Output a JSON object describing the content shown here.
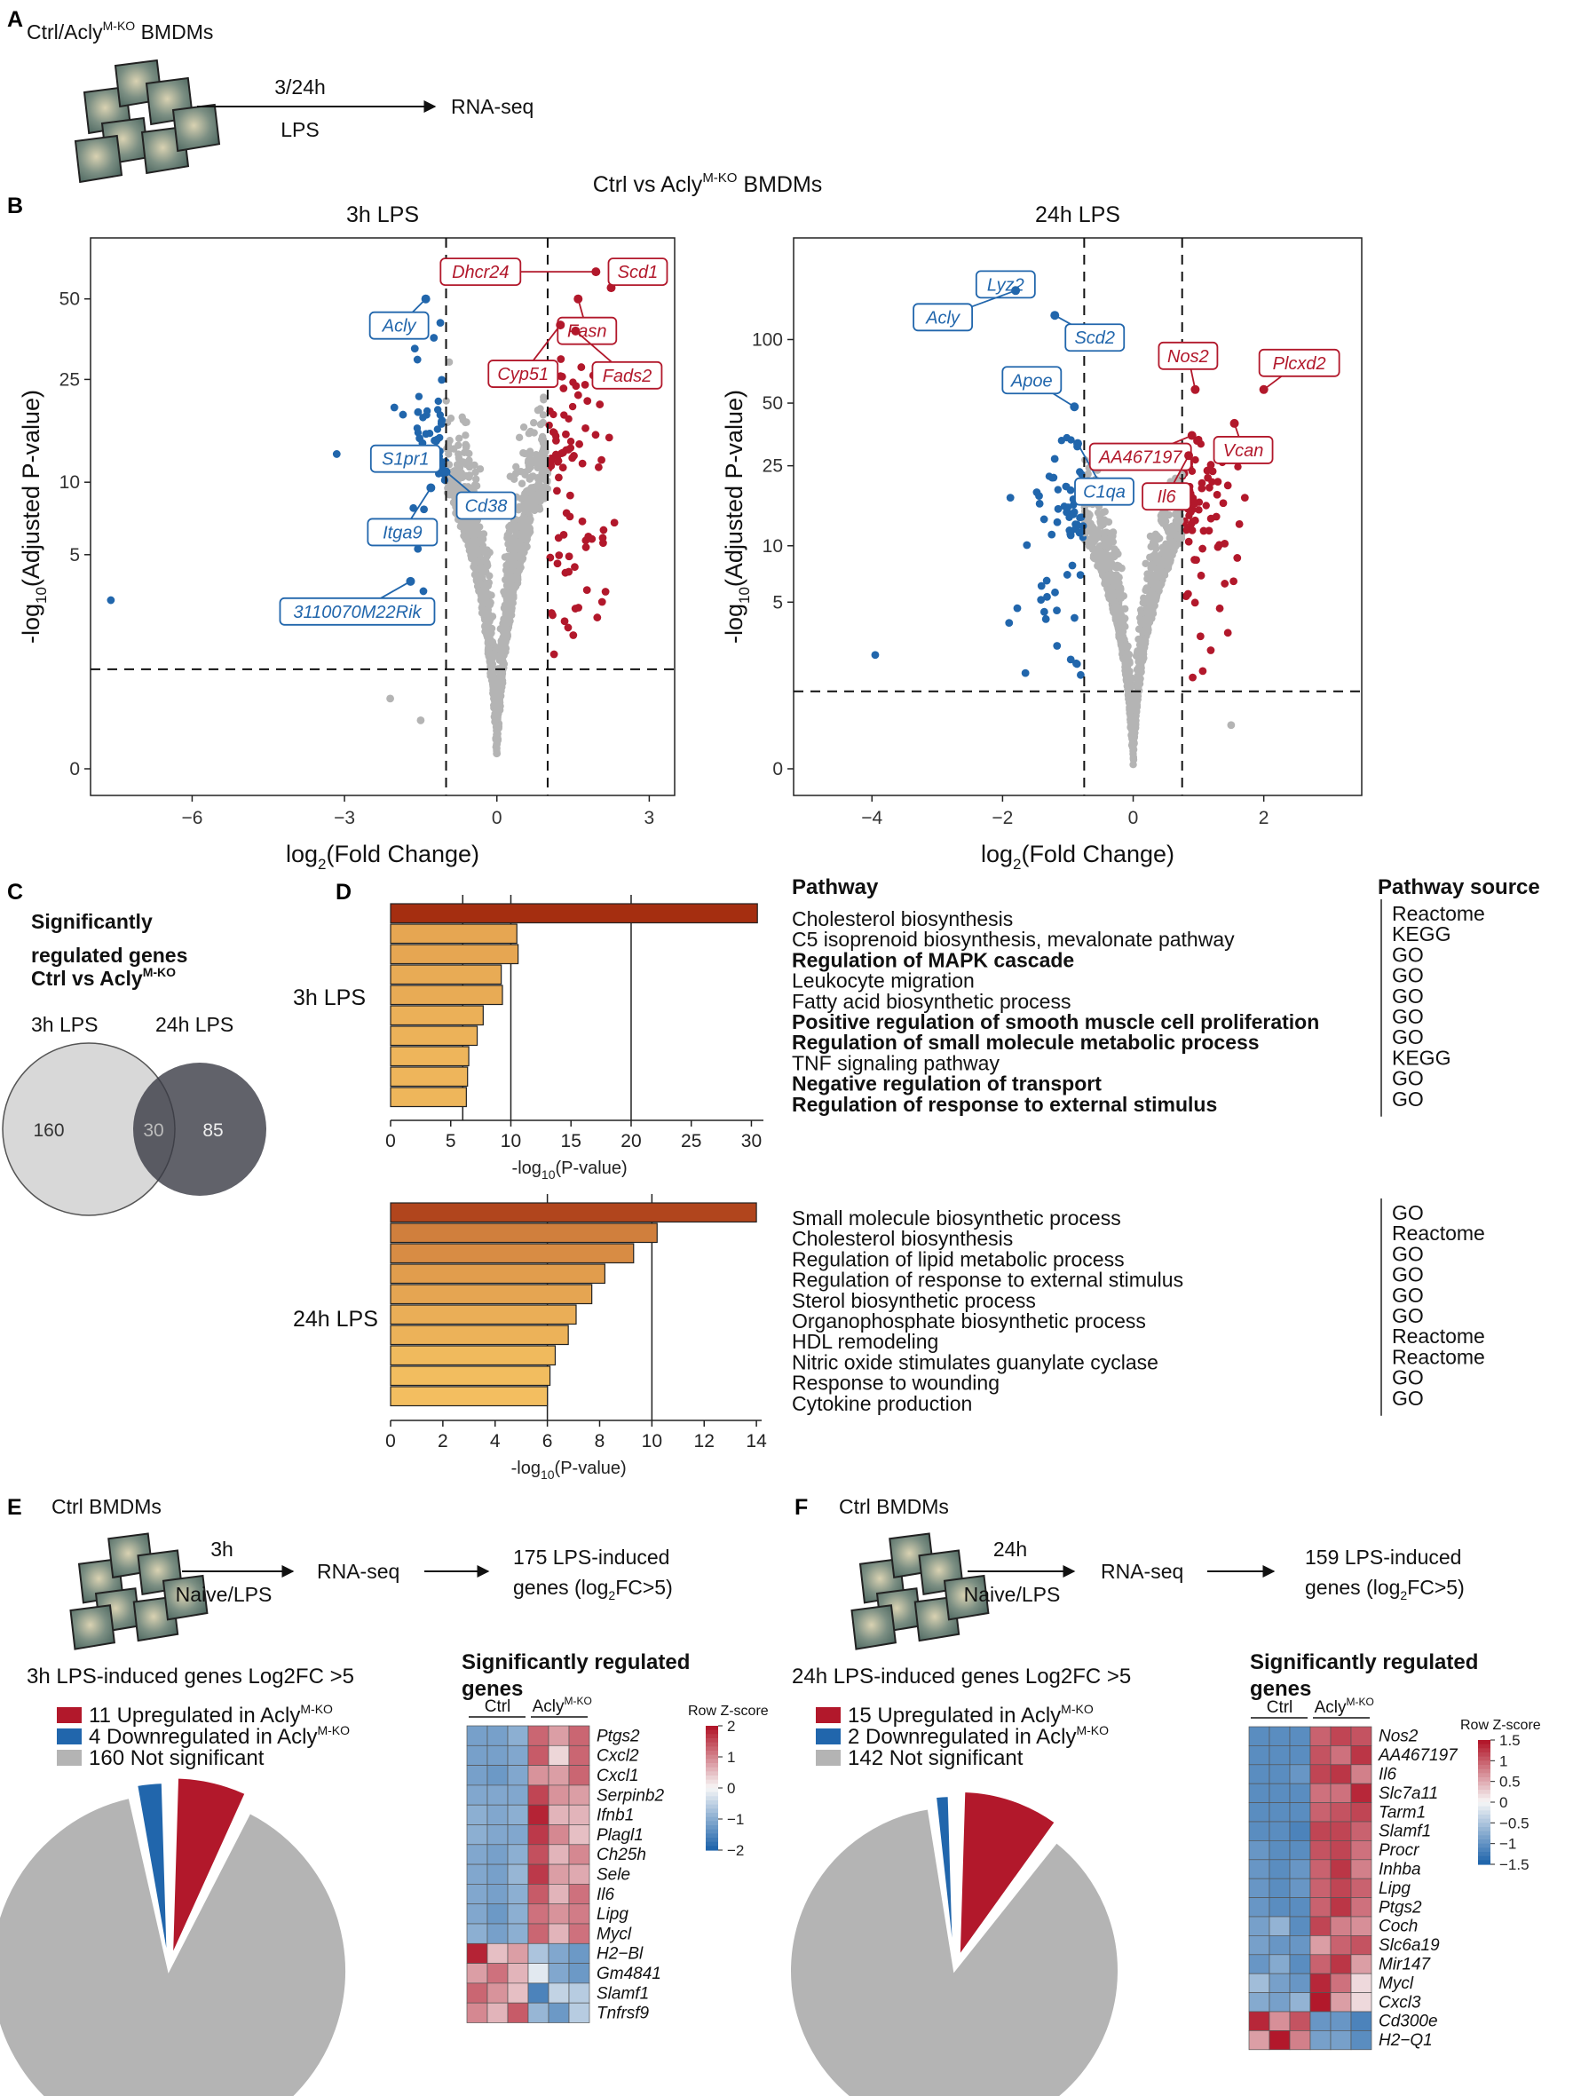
{
  "panel_letters": [
    "A",
    "B",
    "C",
    "D",
    "E",
    "F"
  ],
  "panel_a": {
    "title_prefix": "Ctrl/Acly",
    "title_sup": "M-KO",
    "title_suffix": " BMDMs",
    "arrow_top": "3/24h",
    "arrow_bottom": "LPS",
    "result": "RNA-seq"
  },
  "panel_b": {
    "title_prefix": "Ctrl vs Acly",
    "title_sup": "M-KO",
    "title_suffix": " BMDMs"
  },
  "colors": {
    "up": "#b2182b",
    "down": "#2166ac",
    "ns": "#b4b4b4",
    "dark": "#3a3b45",
    "venn_light": "#d8d8d8",
    "cell": "#55716a",
    "bar_dark": "#a02c10"
  },
  "chart_data": [
    {
      "type": "scatter",
      "panel": "B",
      "title": "3h LPS",
      "xlabel": "log2(Fold Change)",
      "ylabel": "-log10(Adjusted P-value)",
      "xlim": [
        -8,
        3.5
      ],
      "xticks": [
        -6,
        -3,
        0,
        3
      ],
      "yticks": [
        0,
        5,
        10,
        25,
        50
      ],
      "fc_threshold": 1.0,
      "p_threshold": 1.3,
      "labeled_points": [
        {
          "gene": "Acly",
          "x": -1.4,
          "y": 50,
          "dir": "down"
        },
        {
          "gene": "S1pr1",
          "x": -1.1,
          "y": 12,
          "dir": "down"
        },
        {
          "gene": "Cd38",
          "x": -1.0,
          "y": 11,
          "dir": "down"
        },
        {
          "gene": "Itga9",
          "x": -1.3,
          "y": 9.5,
          "dir": "down"
        },
        {
          "gene": "3110070M22Rik",
          "x": -1.7,
          "y": 3.8,
          "dir": "down"
        },
        {
          "gene": "Dhcr24",
          "x": 1.95,
          "y": 63,
          "dir": "up"
        },
        {
          "gene": "Scd1",
          "x": 2.25,
          "y": 55,
          "dir": "up"
        },
        {
          "gene": "Fasn",
          "x": 1.6,
          "y": 50,
          "dir": "up"
        },
        {
          "gene": "Cyp51",
          "x": 1.25,
          "y": 40,
          "dir": "up"
        },
        {
          "gene": "Fads2",
          "x": 1.55,
          "y": 38,
          "dir": "up"
        }
      ],
      "other_points": [
        {
          "x": -7.6,
          "y": 3.1,
          "dir": "down"
        },
        {
          "x": -2.1,
          "y": 0.8,
          "dir": "ns"
        },
        {
          "x": -1.5,
          "y": 0.5,
          "dir": "ns"
        }
      ]
    },
    {
      "type": "scatter",
      "panel": "B",
      "title": "24h LPS",
      "xlabel": "log2(Fold Change)",
      "ylabel": "-log10(Adjusted P-value)",
      "xlim": [
        -5.2,
        3.5
      ],
      "xticks": [
        -4,
        -2,
        0,
        2
      ],
      "yticks": [
        0,
        5,
        10,
        25,
        50,
        100
      ],
      "fc_threshold": 0.75,
      "p_threshold": 1.3,
      "labeled_points": [
        {
          "gene": "Lyz2",
          "x": -1.6,
          "y": 200,
          "dir": "down"
        },
        {
          "gene": "Acly",
          "x": -1.8,
          "y": 170,
          "dir": "down"
        },
        {
          "gene": "Scd2",
          "x": -1.2,
          "y": 130,
          "dir": "down"
        },
        {
          "gene": "Apoe",
          "x": -0.9,
          "y": 48,
          "dir": "down"
        },
        {
          "gene": "C1qa",
          "x": -0.85,
          "y": 32,
          "dir": "down"
        },
        {
          "gene": "Nos2",
          "x": 0.95,
          "y": 58,
          "dir": "up"
        },
        {
          "gene": "AA467197",
          "x": 0.9,
          "y": 35,
          "dir": "up"
        },
        {
          "gene": "Il6",
          "x": 0.85,
          "y": 28,
          "dir": "up"
        },
        {
          "gene": "Plcxd2",
          "x": 2.0,
          "y": 58,
          "dir": "up"
        },
        {
          "gene": "Vcan",
          "x": 1.55,
          "y": 40,
          "dir": "up"
        }
      ],
      "other_points": [
        {
          "x": -3.95,
          "y": 2.4,
          "dir": "down"
        },
        {
          "x": -1.65,
          "y": 1.8,
          "dir": "down"
        },
        {
          "x": -1.9,
          "y": 3.8,
          "dir": "down"
        },
        {
          "x": 1.5,
          "y": 0.6,
          "dir": "ns"
        }
      ]
    },
    {
      "type": "bar",
      "panel": "D",
      "row_label": "3h LPS",
      "xlabel": "-log10(P-value)",
      "xticks": [
        0,
        5,
        10,
        15,
        20,
        25,
        30
      ],
      "xlim": [
        0,
        31
      ],
      "ref_lines": [
        6,
        10,
        20
      ],
      "pathway_header": "Pathway",
      "source_header": "Pathway source",
      "categories": [
        "Cholesterol biosynthesis",
        "C5 isoprenoid biosynthesis, mevalonate pathway",
        "Regulation of MAPK cascade",
        "Leukocyte migration",
        "Fatty acid biosynthetic process",
        "Positive regulation of smooth muscle cell proliferation",
        "Regulation of small molecule metabolic process",
        "TNF signaling pathway",
        "Negative regulation of transport",
        "Regulation of response to external stimulus"
      ],
      "sources": [
        "Reactome",
        "KEGG",
        "GO",
        "GO",
        "GO",
        "GO",
        "GO",
        "KEGG",
        "GO",
        "GO"
      ],
      "values": [
        30.5,
        10.5,
        10.6,
        9.2,
        9.3,
        7.7,
        7.2,
        6.5,
        6.4,
        6.3
      ]
    },
    {
      "type": "bar",
      "panel": "D",
      "row_label": "24h LPS",
      "xlabel": "-log10(P-value)",
      "xticks": [
        0,
        2,
        4,
        6,
        8,
        10,
        12,
        14
      ],
      "xlim": [
        0,
        14.2
      ],
      "ref_lines": [
        6,
        10
      ],
      "categories": [
        "Small molecule biosynthetic process",
        "Cholesterol biosynthesis",
        "Regulation of lipid metabolic process",
        "Regulation of response to external stimulus",
        "Sterol biosynthetic process",
        "Organophosphate biosynthetic process",
        "HDL remodeling",
        "Nitric oxide stimulates guanylate cyclase",
        "Response to wounding",
        "Cytokine production"
      ],
      "sources": [
        "GO",
        "Reactome",
        "GO",
        "GO",
        "GO",
        "GO",
        "Reactome",
        "Reactome",
        "GO",
        "GO"
      ],
      "values": [
        14.0,
        10.2,
        9.3,
        8.2,
        7.7,
        7.1,
        6.8,
        6.3,
        6.1,
        6.0
      ]
    },
    {
      "type": "pie",
      "panel": "E",
      "title": "3h LPS-induced genes Log2FC >5",
      "slices": [
        {
          "label_main": "11 Upregulated in Acly",
          "label_sup": "M-KO",
          "value": 11,
          "dir": "up"
        },
        {
          "label_main": "4 Downregulated in Acly",
          "label_sup": "M-KO",
          "value": 4,
          "dir": "down"
        },
        {
          "label_main": "160 Not significant",
          "label_sup": "",
          "value": 160,
          "dir": "ns"
        }
      ]
    },
    {
      "type": "pie",
      "panel": "F",
      "title": "24h LPS-induced genes Log2FC >5",
      "slices": [
        {
          "label_main": "15 Upregulated in Acly",
          "label_sup": "M-KO",
          "value": 15,
          "dir": "up"
        },
        {
          "label_main": "2 Downregulated in Acly",
          "label_sup": "M-KO",
          "value": 2,
          "dir": "down"
        },
        {
          "label_main": "142 Not significant",
          "label_sup": "",
          "value": 142,
          "dir": "ns"
        }
      ]
    },
    {
      "type": "heatmap",
      "panel": "E",
      "title_lines": [
        "Significantly regulated",
        "genes"
      ],
      "group_labels": [
        "Ctrl",
        "Acly"
      ],
      "group_sup": "M-KO",
      "legend_title": "Row Z-score",
      "legend_ticks": [
        "2",
        "1",
        "0",
        "−1",
        "−2"
      ],
      "legend_values": [
        2,
        1,
        0,
        -1,
        -2
      ],
      "rows": [
        "Ptgs2",
        "Cxcl2",
        "Cxcl1",
        "Serpinb2",
        "Ifnb1",
        "Plagl1",
        "Ch25h",
        "Sele",
        "Il6",
        "Lipg",
        "Mycl",
        "H2−Bl",
        "Gm4841",
        "Slamf1",
        "Tnfrsf9"
      ],
      "values": [
        [
          -1.2,
          -1.2,
          -1.0,
          1.3,
          0.8,
          1.3
        ],
        [
          -1.2,
          -1.2,
          -1.1,
          1.4,
          0.3,
          1.3
        ],
        [
          -1.2,
          -1.3,
          -1.1,
          0.9,
          0.8,
          1.3
        ],
        [
          -1.1,
          -1.1,
          -1.1,
          1.6,
          0.9,
          0.8
        ],
        [
          -1.0,
          -1.1,
          -1.0,
          1.9,
          0.6,
          0.6
        ],
        [
          -1.0,
          -1.1,
          -1.1,
          1.7,
          1.0,
          0.5
        ],
        [
          -1.1,
          -1.2,
          -1.0,
          1.5,
          0.6,
          1.0
        ],
        [
          -1.1,
          -1.2,
          -0.9,
          1.7,
          0.8,
          0.7
        ],
        [
          -1.1,
          -1.2,
          -1.0,
          1.4,
          0.6,
          1.2
        ],
        [
          -1.1,
          -1.3,
          -1.0,
          1.2,
          0.9,
          1.1
        ],
        [
          -1.0,
          -1.2,
          -1.0,
          1.3,
          0.6,
          1.2
        ],
        [
          1.9,
          0.5,
          0.8,
          -0.7,
          -1.1,
          -1.3
        ],
        [
          0.8,
          1.2,
          0.6,
          -0.2,
          -1.1,
          -1.3
        ],
        [
          1.3,
          0.9,
          0.5,
          -1.6,
          -0.5,
          -0.6
        ],
        [
          1.0,
          0.6,
          1.4,
          -0.9,
          -1.3,
          -0.6
        ]
      ]
    },
    {
      "type": "heatmap",
      "panel": "F",
      "title_lines": [
        "Significantly regulated",
        "genes"
      ],
      "group_labels": [
        "Ctrl",
        "Acly"
      ],
      "group_sup": "M-KO",
      "legend_title": "Row Z-score",
      "legend_ticks": [
        "1.5",
        "1",
        "0.5",
        "0",
        "−0.5",
        "−1",
        "−1.5"
      ],
      "legend_values": [
        1.5,
        1,
        0.5,
        0,
        -0.5,
        -1,
        -1.5
      ],
      "rows": [
        "Nos2",
        "AA467197",
        "Il6",
        "Slc7a11",
        "Tarm1",
        "Slamf1",
        "Procr",
        "Inhba",
        "Lipg",
        "Ptgs2",
        "Coch",
        "Slc6a19",
        "Mir147",
        "Mycl",
        "Cxcl3",
        "Cd300e",
        "H2−Q1"
      ],
      "values": [
        [
          -1.1,
          -1.1,
          -1.1,
          1.0,
          1.2,
          1.1
        ],
        [
          -1.1,
          -1.1,
          -1.1,
          1.1,
          0.9,
          1.3
        ],
        [
          -1.1,
          -1.1,
          -1.0,
          1.2,
          1.3,
          0.8
        ],
        [
          -1.1,
          -1.1,
          -1.1,
          0.9,
          0.9,
          1.4
        ],
        [
          -1.1,
          -1.1,
          -1.1,
          1.0,
          1.1,
          1.2
        ],
        [
          -1.1,
          -1.1,
          -1.2,
          1.2,
          1.2,
          1.0
        ],
        [
          -1.0,
          -1.1,
          -1.1,
          1.1,
          1.2,
          0.9
        ],
        [
          -1.0,
          -1.1,
          -1.0,
          1.0,
          1.3,
          0.8
        ],
        [
          -1.0,
          -1.1,
          -1.0,
          1.0,
          1.2,
          1.0
        ],
        [
          -1.0,
          -1.1,
          -1.1,
          1.0,
          1.3,
          0.9
        ],
        [
          -0.9,
          -0.7,
          -1.1,
          1.2,
          0.8,
          0.7
        ],
        [
          -0.9,
          -1.0,
          -1.0,
          0.6,
          1.0,
          1.1
        ],
        [
          -1.0,
          -0.8,
          -1.1,
          1.0,
          1.3,
          0.6
        ],
        [
          -0.6,
          -0.9,
          -1.0,
          1.4,
          0.9,
          0.2
        ],
        [
          -0.8,
          -0.9,
          -0.7,
          1.6,
          0.6,
          0.2
        ],
        [
          1.4,
          0.7,
          1.1,
          -1.0,
          -1.0,
          -1.2
        ],
        [
          0.6,
          1.5,
          0.8,
          -0.9,
          -0.9,
          -1.1
        ]
      ]
    }
  ],
  "panel_c": {
    "title_lines": [
      "Significantly",
      "regulated genes"
    ],
    "title_last_prefix": "Ctrl vs Acly",
    "title_sup": "M-KO",
    "label_left": "3h LPS",
    "label_right": "24h LPS",
    "only_left": "160",
    "overlap": "30",
    "only_right": "85"
  },
  "panel_e": {
    "cells_label": "Ctrl BMDMs",
    "arrow_top": "3h",
    "arrow_bottom": "Naive/LPS",
    "mid": "RNA-seq",
    "result_line1": "175 LPS-induced",
    "result_line2_prefix": "genes (log",
    "result_line2_sub": "2",
    "result_line2_suffix": "FC>5)"
  },
  "panel_f": {
    "cells_label": "Ctrl BMDMs",
    "arrow_top": "24h",
    "arrow_bottom": "Naive/LPS",
    "mid": "RNA-seq",
    "result_line1": "159 LPS-induced",
    "result_line2_prefix": "genes (log",
    "result_line2_sub": "2",
    "result_line2_suffix": "FC>5)"
  }
}
